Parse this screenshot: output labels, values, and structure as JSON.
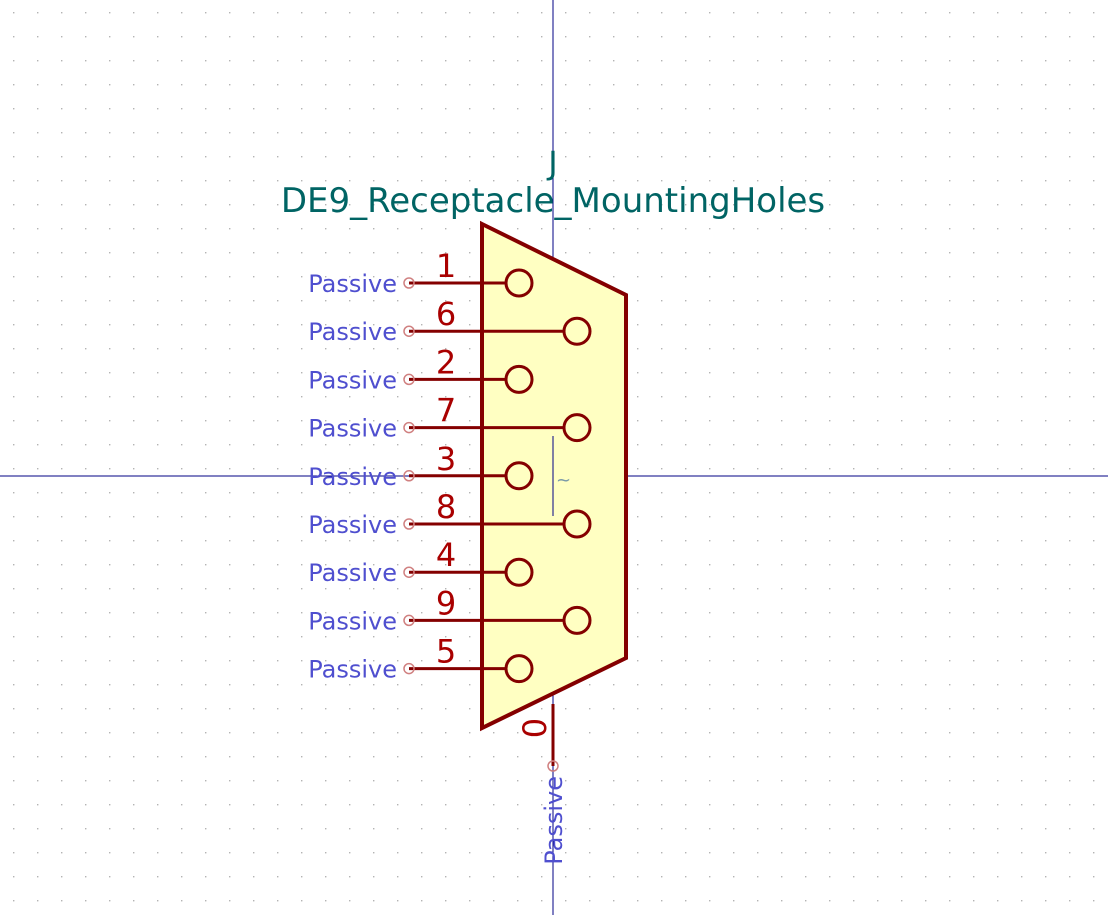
{
  "symbol": {
    "reference": "J",
    "value": "DE9_Receptacle_MountingHoles",
    "center_marker": "~"
  },
  "pins": [
    {
      "number": "1",
      "type": "Passive"
    },
    {
      "number": "6",
      "type": "Passive"
    },
    {
      "number": "2",
      "type": "Passive"
    },
    {
      "number": "7",
      "type": "Passive"
    },
    {
      "number": "3",
      "type": "Passive"
    },
    {
      "number": "8",
      "type": "Passive"
    },
    {
      "number": "4",
      "type": "Passive"
    },
    {
      "number": "9",
      "type": "Passive"
    },
    {
      "number": "5",
      "type": "Passive"
    }
  ],
  "shield_pin": {
    "number": "0",
    "type": "Passive"
  },
  "colors": {
    "background": "#ffffff",
    "grid_dot": "#b4b4b4",
    "axis": "#000084",
    "body_outline": "#840000",
    "body_fill": "#ffffc2",
    "pin": "#840000",
    "pin_number": "#a90000",
    "pin_type": "#4f4fcf",
    "field_text": "#006464"
  }
}
